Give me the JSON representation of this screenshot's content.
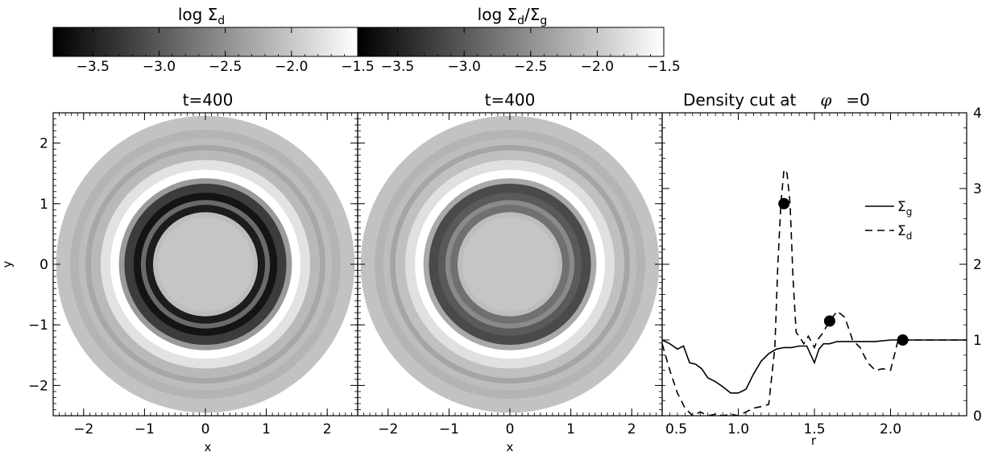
{
  "chart_data": [
    {
      "type": "colorbar",
      "title": "log Σ",
      "title_sub": "d",
      "ticks": [
        -3.5,
        -3.0,
        -2.5,
        -2.0,
        -1.5
      ],
      "tick_labels": [
        "−3.5",
        "−3.0",
        "−2.5",
        "−2.0",
        "−1.5"
      ],
      "range": [
        -3.8,
        -1.5
      ],
      "colormap": [
        "#000000",
        "#ffffff"
      ]
    },
    {
      "type": "colorbar",
      "title": "log Σ",
      "title_sub": "d",
      "title_mid": "/Σ",
      "title_sub2": "g",
      "ticks": [
        -3.5,
        -3.0,
        -2.5,
        -2.0,
        -1.5
      ],
      "tick_labels": [
        "−3.5",
        "−3.0",
        "−2.5",
        "−2.0",
        "−1.5"
      ],
      "range": [
        -3.8,
        -1.5
      ],
      "colormap": [
        "#000000",
        "#ffffff"
      ]
    },
    {
      "type": "heatmap",
      "title": "t=400",
      "xlabel": "x",
      "ylabel": "y",
      "xlim": [
        -2.5,
        2.5
      ],
      "ylim": [
        -2.5,
        2.5
      ],
      "x_ticks": [
        -2,
        -1,
        0,
        1,
        2
      ],
      "x_tick_labels": [
        "−2",
        "−1",
        "0",
        "1",
        "2"
      ],
      "y_ticks": [
        -2,
        -1,
        0,
        1,
        2
      ],
      "y_tick_labels": [
        "−2",
        "−1",
        "0",
        "1",
        "2"
      ],
      "rings": [
        {
          "r_out": 2.45,
          "color": "#c2c2c2"
        },
        {
          "r_out": 2.22,
          "color": "#b4b4b4"
        },
        {
          "r_out": 2.08,
          "color": "#bdbdbd"
        },
        {
          "r_out": 1.97,
          "color": "#a7a7a7"
        },
        {
          "r_out": 1.88,
          "color": "#b9b9b9"
        },
        {
          "r_out": 1.72,
          "color": "#e2e2e2"
        },
        {
          "r_out": 1.56,
          "color": "#ffffff"
        },
        {
          "r_out": 1.42,
          "color": "#9a9a9a"
        },
        {
          "r_out": 1.33,
          "color": "#3c3c3c"
        },
        {
          "r_out": 1.18,
          "color": "#141414"
        },
        {
          "r_out": 1.06,
          "color": "#6a6a6a"
        },
        {
          "r_out": 0.98,
          "color": "#1c1c1c"
        },
        {
          "r_out": 0.86,
          "color": "#bdbdbd"
        },
        {
          "r_out": 0.78,
          "color": "#c5c5c5"
        }
      ]
    },
    {
      "type": "heatmap",
      "title": "t=400",
      "xlabel": "x",
      "xlim": [
        -2.5,
        2.5
      ],
      "ylim": [
        -2.5,
        2.5
      ],
      "x_ticks": [
        -2,
        -1,
        0,
        1,
        2
      ],
      "x_tick_labels": [
        "−2",
        "−1",
        "0",
        "1",
        "2"
      ],
      "rings": [
        {
          "r_out": 2.45,
          "color": "#c2c2c2"
        },
        {
          "r_out": 2.22,
          "color": "#b4b4b4"
        },
        {
          "r_out": 2.08,
          "color": "#bdbdbd"
        },
        {
          "r_out": 1.97,
          "color": "#a5a5a5"
        },
        {
          "r_out": 1.88,
          "color": "#c0c0c0"
        },
        {
          "r_out": 1.72,
          "color": "#e0e0e0"
        },
        {
          "r_out": 1.56,
          "color": "#ffffff"
        },
        {
          "r_out": 1.42,
          "color": "#a9a9a9"
        },
        {
          "r_out": 1.33,
          "color": "#4a4a4a"
        },
        {
          "r_out": 1.18,
          "color": "#5a5a5a"
        },
        {
          "r_out": 1.06,
          "color": "#8a8a8a"
        },
        {
          "r_out": 0.98,
          "color": "#707070"
        },
        {
          "r_out": 0.86,
          "color": "#bdbdbd"
        },
        {
          "r_out": 0.78,
          "color": "#c5c5c5"
        }
      ]
    },
    {
      "type": "line",
      "title": "Density cut at",
      "title_phi": "φ",
      "title_end": "=0",
      "xlabel": "r",
      "xlim": [
        0.5,
        2.5
      ],
      "ylim": [
        0,
        4
      ],
      "x_ticks": [
        0.5,
        1.0,
        1.5,
        2.0
      ],
      "x_tick_labels": [
        "0.5",
        "1.0",
        "1.5",
        "2.0"
      ],
      "y_ticks": [
        0,
        1,
        2,
        3,
        4
      ],
      "y_tick_labels": [
        "0",
        "1",
        "2",
        "3",
        "4"
      ],
      "legend_position": "top-right",
      "series": [
        {
          "name": "Σ",
          "name_sub": "g",
          "style": "solid",
          "x": [
            0.5,
            0.55,
            0.6,
            0.64,
            0.68,
            0.72,
            0.76,
            0.8,
            0.85,
            0.9,
            0.95,
            1.0,
            1.05,
            1.1,
            1.15,
            1.2,
            1.25,
            1.3,
            1.35,
            1.4,
            1.45,
            1.5,
            1.53,
            1.56,
            1.6,
            1.65,
            1.7,
            1.75,
            1.8,
            1.9,
            2.0,
            2.1,
            2.2,
            2.3,
            2.4,
            2.5
          ],
          "y": [
            1.0,
            0.95,
            0.88,
            0.92,
            0.7,
            0.68,
            0.62,
            0.5,
            0.45,
            0.38,
            0.3,
            0.3,
            0.35,
            0.55,
            0.72,
            0.82,
            0.88,
            0.9,
            0.9,
            0.92,
            0.92,
            0.7,
            0.88,
            0.95,
            0.95,
            0.98,
            0.98,
            0.98,
            0.98,
            0.98,
            1.0,
            1.0,
            1.0,
            1.0,
            1.0,
            1.0
          ]
        },
        {
          "name": "Σ",
          "name_sub": "d",
          "style": "dashed",
          "x": [
            0.5,
            0.55,
            0.6,
            0.65,
            0.7,
            0.75,
            0.8,
            0.85,
            0.9,
            0.95,
            1.0,
            1.05,
            1.1,
            1.15,
            1.2,
            1.24,
            1.26,
            1.28,
            1.3,
            1.32,
            1.34,
            1.36,
            1.38,
            1.4,
            1.43,
            1.46,
            1.5,
            1.52,
            1.55,
            1.6,
            1.65,
            1.7,
            1.75,
            1.8,
            1.85,
            1.9,
            1.95,
            2.0,
            2.05,
            2.1,
            2.15,
            2.2,
            2.3,
            2.4,
            2.5
          ],
          "y": [
            0.95,
            0.6,
            0.3,
            0.1,
            0.0,
            0.05,
            0.0,
            0.02,
            0.0,
            0.02,
            0.0,
            0.05,
            0.1,
            0.12,
            0.15,
            0.9,
            2.0,
            2.8,
            3.25,
            3.2,
            2.8,
            1.8,
            1.1,
            1.05,
            0.95,
            1.05,
            0.9,
            1.0,
            1.08,
            1.25,
            1.38,
            1.3,
            1.0,
            0.9,
            0.7,
            0.6,
            0.62,
            0.6,
            1.0,
            1.0,
            1.0,
            1.0,
            1.0,
            1.0,
            1.0
          ]
        }
      ],
      "markers": [
        {
          "x": 1.3,
          "y": 2.8
        },
        {
          "x": 1.6,
          "y": 1.25
        },
        {
          "x": 2.08,
          "y": 1.0
        }
      ]
    }
  ]
}
